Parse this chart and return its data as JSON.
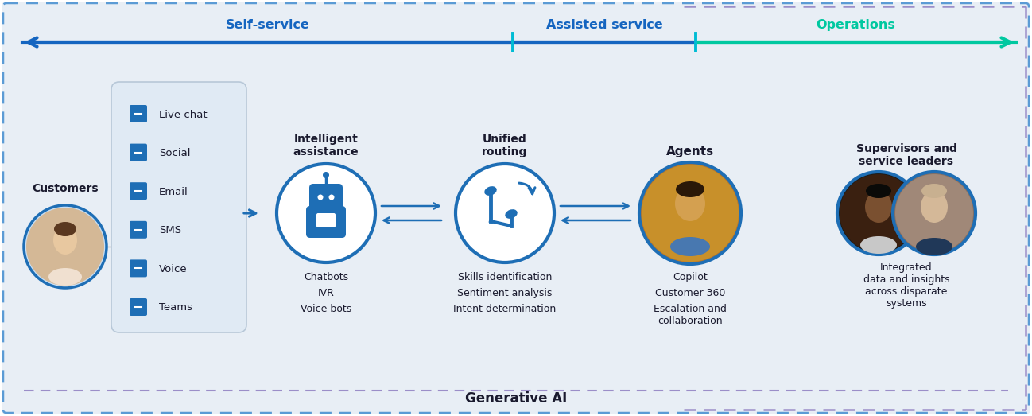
{
  "bg_color": "#e8eef5",
  "border_blue": "#5b9bd5",
  "border_purple": "#9b8ec8",
  "arrow_blue": "#1565c0",
  "arrow_teal": "#00c8a0",
  "teal_divider": "#00bcd4",
  "icon_blue": "#1e6eb5",
  "text_dark": "#1a1a2e",
  "channel_box_bg": "#dde8f2",
  "circle_white": "#ffffff",
  "self_service_label": "Self-service",
  "assisted_service_label": "Assisted service",
  "operations_label": "Operations",
  "bottom_label": "Generative AI",
  "customers_label": "Customers",
  "channels": [
    "Live chat",
    "Social",
    "Email",
    "SMS",
    "Voice",
    "Teams"
  ],
  "ia_title": "Intelligent\nassistance",
  "ia_items": [
    "Chatbots",
    "IVR",
    "Voice bots"
  ],
  "ur_title": "Unified\nrouting",
  "ur_items": [
    "Skills identification",
    "Sentiment analysis",
    "Intent determination"
  ],
  "ag_title": "Agents",
  "ag_items": [
    "Copilot",
    "Customer 360",
    "Escalation and\ncollaboration"
  ],
  "sv_title": "Supervisors and\nservice leaders",
  "sv_items": [
    "Integrated\ndata and insights\nacross disparate\nsystems"
  ]
}
